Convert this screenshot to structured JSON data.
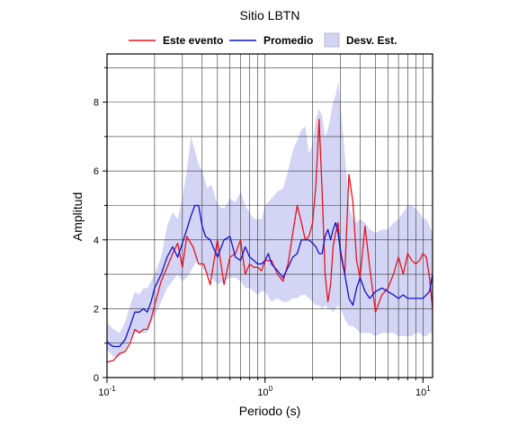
{
  "chart_data": {
    "type": "line",
    "title": "Sitio LBTN",
    "xlabel": "Periodo (s)",
    "ylabel": "Amplitud",
    "xscale": "log",
    "xlim": [
      0.1,
      11.5
    ],
    "ylim": [
      0,
      9.4
    ],
    "grid": true,
    "legend_position": "top",
    "x_ticks": [
      {
        "value": 0.1,
        "base": "10",
        "exp": "-1"
      },
      {
        "value": 1,
        "base": "10",
        "exp": "0"
      },
      {
        "value": 10,
        "base": "10",
        "exp": "1"
      }
    ],
    "y_ticks": [
      0,
      2,
      4,
      6,
      8
    ],
    "legend": [
      {
        "label": "Este evento",
        "kind": "line",
        "color": "#e8121b"
      },
      {
        "label": "Promedio",
        "kind": "line",
        "color": "#1010d0"
      },
      {
        "label": "Desv. Est.",
        "kind": "band",
        "color": "#d4d5f5"
      }
    ],
    "series": [
      {
        "name": "Este evento",
        "color": "#e8121b",
        "x": [
          0.1,
          0.11,
          0.12,
          0.13,
          0.14,
          0.15,
          0.16,
          0.17,
          0.18,
          0.19,
          0.2,
          0.22,
          0.24,
          0.26,
          0.28,
          0.3,
          0.32,
          0.35,
          0.38,
          0.41,
          0.45,
          0.5,
          0.55,
          0.6,
          0.65,
          0.7,
          0.75,
          0.8,
          0.85,
          0.9,
          0.95,
          1.0,
          1.1,
          1.2,
          1.3,
          1.4,
          1.5,
          1.6,
          1.7,
          1.8,
          1.9,
          2.0,
          2.1,
          2.2,
          2.3,
          2.4,
          2.5,
          2.6,
          2.7,
          2.8,
          2.9,
          3.0,
          3.2,
          3.4,
          3.6,
          3.8,
          4.0,
          4.3,
          4.6,
          5.0,
          5.5,
          6.0,
          6.5,
          7.0,
          7.5,
          8.0,
          8.5,
          9.0,
          9.5,
          10.0,
          10.5,
          11.0,
          11.5
        ],
        "y": [
          0.45,
          0.5,
          0.7,
          0.75,
          1.0,
          1.4,
          1.3,
          1.4,
          1.4,
          1.7,
          2.1,
          2.8,
          3.2,
          3.6,
          3.9,
          3.2,
          4.1,
          3.8,
          3.3,
          3.3,
          2.7,
          4.0,
          2.7,
          3.5,
          3.6,
          4.0,
          3.0,
          3.3,
          3.2,
          3.2,
          3.1,
          3.4,
          3.4,
          3.0,
          2.8,
          3.3,
          4.2,
          5.0,
          4.5,
          4.0,
          4.1,
          4.5,
          5.6,
          7.5,
          5.4,
          3.0,
          2.2,
          2.7,
          3.8,
          4.2,
          4.5,
          3.6,
          3.0,
          5.9,
          5.1,
          3.4,
          2.9,
          4.4,
          3.2,
          1.9,
          2.4,
          2.6,
          3.0,
          3.5,
          3.0,
          3.6,
          3.4,
          3.3,
          3.4,
          3.6,
          3.5,
          2.9,
          2.0
        ]
      },
      {
        "name": "Promedio",
        "color": "#1010d0",
        "x": [
          0.1,
          0.105,
          0.11,
          0.12,
          0.13,
          0.14,
          0.15,
          0.16,
          0.17,
          0.18,
          0.19,
          0.2,
          0.22,
          0.24,
          0.26,
          0.28,
          0.3,
          0.32,
          0.34,
          0.36,
          0.38,
          0.4,
          0.42,
          0.45,
          0.5,
          0.55,
          0.6,
          0.65,
          0.7,
          0.75,
          0.8,
          0.85,
          0.9,
          0.95,
          1.0,
          1.05,
          1.1,
          1.2,
          1.3,
          1.4,
          1.5,
          1.6,
          1.7,
          1.8,
          1.9,
          2.0,
          2.1,
          2.2,
          2.3,
          2.4,
          2.5,
          2.6,
          2.7,
          2.8,
          2.9,
          3.0,
          3.2,
          3.4,
          3.6,
          3.8,
          4.0,
          4.3,
          4.6,
          5.0,
          5.5,
          6.0,
          6.5,
          7.0,
          7.5,
          8.0,
          8.5,
          9.0,
          9.5,
          10.0,
          10.5,
          11.0,
          11.5
        ],
        "y": [
          1.05,
          0.95,
          0.9,
          0.9,
          1.1,
          1.5,
          1.9,
          1.9,
          2.0,
          1.9,
          2.2,
          2.6,
          3.0,
          3.5,
          3.8,
          3.5,
          3.9,
          4.3,
          4.7,
          5.0,
          5.0,
          4.4,
          4.1,
          4.0,
          3.5,
          4.0,
          4.1,
          3.5,
          3.4,
          3.8,
          3.5,
          3.4,
          3.3,
          3.3,
          3.4,
          3.6,
          3.3,
          3.1,
          2.9,
          3.2,
          3.5,
          3.6,
          4.0,
          4.0,
          4.0,
          3.9,
          3.8,
          3.6,
          3.6,
          4.1,
          4.3,
          4.0,
          4.3,
          4.5,
          4.2,
          3.7,
          3.0,
          2.3,
          2.1,
          2.6,
          2.9,
          2.5,
          2.3,
          2.5,
          2.6,
          2.5,
          2.4,
          2.3,
          2.4,
          2.3,
          2.3,
          2.3,
          2.3,
          2.3,
          2.4,
          2.5,
          3.0
        ]
      }
    ],
    "band": {
      "name": "Desv. Est.",
      "color": "#d4d5f5",
      "x": [
        0.1,
        0.11,
        0.12,
        0.13,
        0.14,
        0.15,
        0.16,
        0.17,
        0.18,
        0.19,
        0.2,
        0.22,
        0.24,
        0.26,
        0.28,
        0.3,
        0.32,
        0.34,
        0.36,
        0.38,
        0.4,
        0.43,
        0.46,
        0.5,
        0.55,
        0.6,
        0.65,
        0.7,
        0.75,
        0.8,
        0.85,
        0.9,
        0.95,
        1.0,
        1.1,
        1.2,
        1.3,
        1.4,
        1.5,
        1.6,
        1.7,
        1.8,
        1.9,
        2.0,
        2.1,
        2.2,
        2.3,
        2.4,
        2.5,
        2.6,
        2.7,
        2.8,
        2.9,
        3.0,
        3.2,
        3.4,
        3.6,
        3.8,
        4.0,
        4.3,
        4.6,
        5.0,
        5.5,
        6.0,
        6.5,
        7.0,
        7.5,
        8.0,
        8.5,
        9.0,
        9.5,
        10.0,
        10.5,
        11.0,
        11.5
      ],
      "upper": [
        1.6,
        1.4,
        1.3,
        1.6,
        2.1,
        2.5,
        2.4,
        2.6,
        2.6,
        2.8,
        3.0,
        3.5,
        4.4,
        4.8,
        4.6,
        5.2,
        6.0,
        7.0,
        6.6,
        6.2,
        6.0,
        5.5,
        5.6,
        5.0,
        4.9,
        5.2,
        5.1,
        5.4,
        5.0,
        4.8,
        4.6,
        4.6,
        4.6,
        5.0,
        5.2,
        5.4,
        5.5,
        6.0,
        6.6,
        6.9,
        7.2,
        7.3,
        6.5,
        6.8,
        7.5,
        7.8,
        7.6,
        7.0,
        7.2,
        7.6,
        8.0,
        8.2,
        8.6,
        8.0,
        6.5,
        5.0,
        4.6,
        4.5,
        4.6,
        4.5,
        4.3,
        4.2,
        4.3,
        4.3,
        4.5,
        4.6,
        4.8,
        5.0,
        5.0,
        4.9,
        4.8,
        4.6,
        4.6,
        4.4,
        4.2
      ],
      "lower": [
        0.8,
        0.6,
        0.6,
        0.8,
        1.1,
        1.3,
        1.3,
        1.3,
        1.3,
        1.6,
        1.8,
        2.2,
        2.6,
        2.8,
        3.0,
        2.8,
        2.9,
        3.1,
        3.3,
        3.4,
        3.2,
        3.0,
        2.9,
        2.7,
        2.8,
        2.9,
        2.9,
        2.8,
        2.6,
        2.6,
        2.5,
        2.4,
        2.5,
        2.5,
        2.2,
        2.3,
        2.2,
        2.2,
        2.3,
        2.3,
        2.4,
        2.4,
        2.3,
        2.2,
        2.1,
        2.1,
        2.0,
        2.1,
        2.0,
        2.0,
        1.9,
        2.0,
        2.1,
        2.0,
        1.7,
        1.5,
        1.5,
        1.4,
        1.3,
        1.3,
        1.3,
        1.2,
        1.3,
        1.3,
        1.3,
        1.2,
        1.2,
        1.2,
        1.2,
        1.3,
        1.3,
        1.2,
        1.2,
        1.3,
        1.3
      ]
    }
  }
}
